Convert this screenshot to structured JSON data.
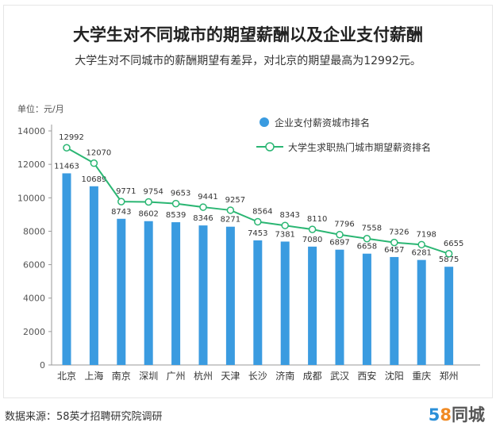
{
  "title": "大学生对不同城市的期望薪酬以及企业支付薪酬",
  "subtitle": "大学生对不同城市的薪酬期望有差异，对北京的期望最高为12992元。",
  "unit_label": "单位：元/月",
  "source_text": "数据来源：58英才招聘研究院调研",
  "brand": {
    "num_5": "5",
    "num_8": "8",
    "text": "同城"
  },
  "colors": {
    "bar": "#3a9be0",
    "line": "#2bb673",
    "point_fill": "#ffffff",
    "axis": "#999999"
  },
  "chart_data": {
    "type": "bar",
    "title": "大学生对不同城市的期望薪酬以及企业支付薪酬",
    "categories": [
      "北京",
      "上海",
      "南京",
      "深圳",
      "广州",
      "杭州",
      "天津",
      "长沙",
      "济南",
      "成都",
      "武汉",
      "西安",
      "沈阳",
      "重庆",
      "郑州"
    ],
    "ylim": [
      0,
      14000
    ],
    "yticks": [
      0,
      2000,
      4000,
      6000,
      8000,
      10000,
      12000,
      14000
    ],
    "grid": false,
    "legend_position": "top-right",
    "series": [
      {
        "name": "企业支付薪资城市排名",
        "type": "bar",
        "values": [
          11463,
          10689,
          8743,
          8602,
          8539,
          8346,
          8271,
          7453,
          7381,
          7080,
          6897,
          6658,
          6457,
          6281,
          5875
        ]
      },
      {
        "name": "大学生求职热门城市期望薪资排名",
        "type": "line",
        "values": [
          12992,
          12070,
          9771,
          9754,
          9653,
          9441,
          9257,
          8564,
          8343,
          8110,
          7796,
          7558,
          7326,
          7198,
          6655
        ]
      }
    ]
  }
}
